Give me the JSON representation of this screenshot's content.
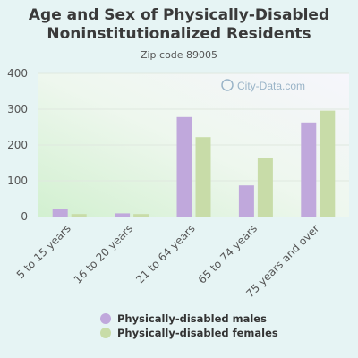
{
  "header": {
    "title_line1": "Age and Sex of Physically-Disabled",
    "title_line2": "Noninstitutionalized Residents",
    "subtitle": "Zip code 89005",
    "watermark": "City-Data.com"
  },
  "chart_data": {
    "type": "bar",
    "categories": [
      "5 to 15 years",
      "16 to 20 years",
      "21 to 64 years",
      "65 to 74 years",
      "75 years and over"
    ],
    "series": [
      {
        "name": "Physically-disabled males",
        "color": "#c0a8dc",
        "values": [
          22,
          9,
          278,
          87,
          263
        ]
      },
      {
        "name": "Physically-disabled females",
        "color": "#c8dca8",
        "values": [
          7,
          7,
          222,
          165,
          296
        ]
      }
    ],
    "yticks": [
      0,
      100,
      200,
      300,
      400
    ],
    "ylim": [
      0,
      400
    ],
    "grid": true,
    "legend_position": "bottom"
  }
}
